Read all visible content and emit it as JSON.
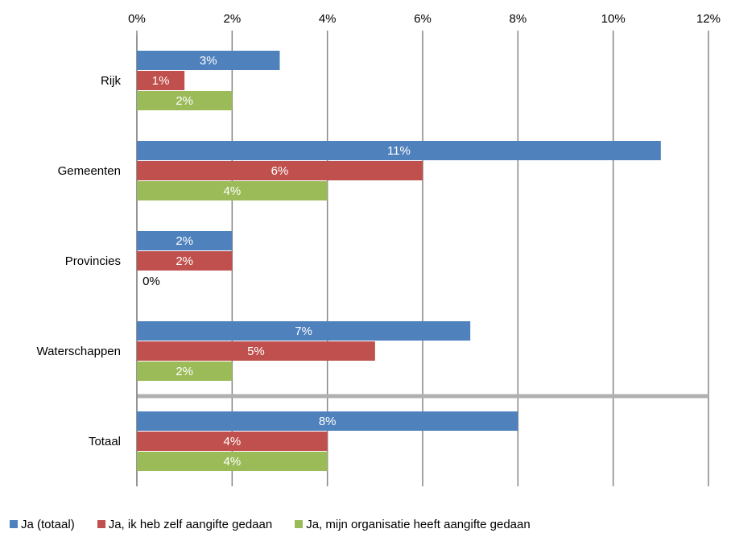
{
  "chart_data": {
    "type": "bar",
    "orientation": "horizontal",
    "title": "",
    "xlabel": "",
    "ylabel": "",
    "xlim": [
      0,
      12
    ],
    "x_ticks": [
      "0%",
      "2%",
      "4%",
      "6%",
      "8%",
      "10%",
      "12%"
    ],
    "x_axis_position": "top",
    "grid": true,
    "legend_position": "bottom",
    "categories": [
      "Rijk",
      "Gemeenten",
      "Provincies",
      "Waterschappen",
      "Totaal"
    ],
    "separator_before": "Totaal",
    "series": [
      {
        "name": "Ja (totaal)",
        "color": "#4F81BD",
        "values": [
          3,
          11,
          2,
          7,
          8
        ],
        "labels": [
          "3%",
          "11%",
          "2%",
          "7%",
          "8%"
        ]
      },
      {
        "name": "Ja, ik heb zelf aangifte gedaan",
        "color": "#C0504D",
        "values": [
          1,
          6,
          2,
          5,
          4
        ],
        "labels": [
          "1%",
          "6%",
          "2%",
          "5%",
          "4%"
        ]
      },
      {
        "name": "Ja, mijn organisatie heeft aangifte gedaan",
        "color": "#9BBB59",
        "values": [
          2,
          4,
          0,
          2,
          4
        ],
        "labels": [
          "2%",
          "4%",
          "0%",
          "2%",
          "4%"
        ]
      }
    ]
  }
}
